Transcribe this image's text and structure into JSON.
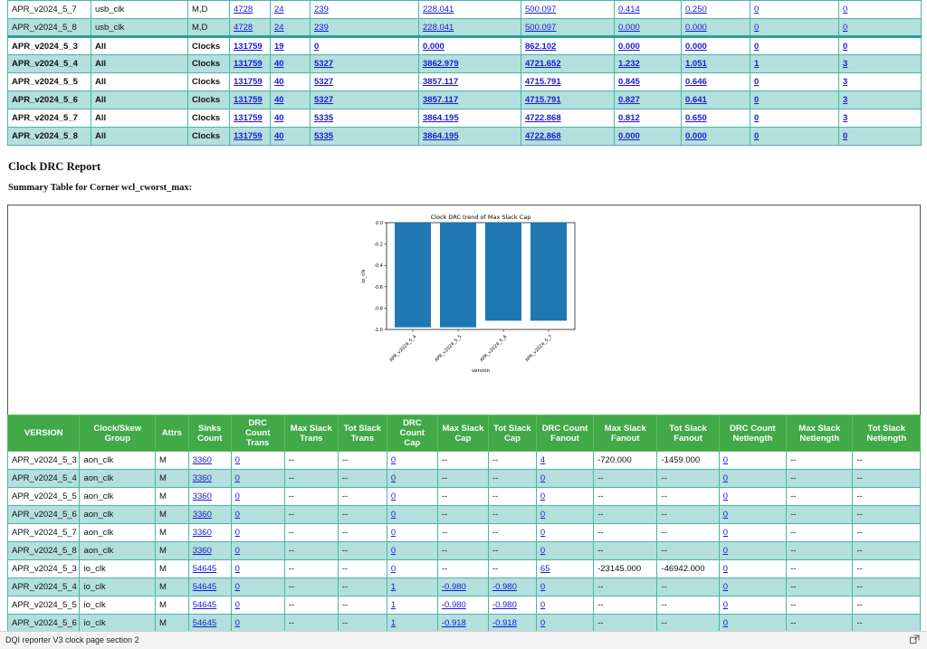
{
  "top_table": {
    "rows": [
      {
        "version": "APR_v2024_5_7",
        "group": "usb_clk",
        "attrs": "M,D",
        "c1": "4728",
        "c2": "24",
        "c3": "239",
        "c4": "228.041",
        "c5": "500.097",
        "c6": "0.414",
        "c7": "0.250",
        "c8": "0",
        "c9": "0"
      },
      {
        "version": "APR_v2024_5_8",
        "group": "usb_clk",
        "attrs": "M,D",
        "c1": "4728",
        "c2": "24",
        "c3": "239",
        "c4": "228.041",
        "c5": "500.097",
        "c6": "0.000",
        "c7": "0.000",
        "c8": "0",
        "c9": "0"
      },
      {
        "version": "APR_v2024_5_3",
        "group": "All",
        "attrs": "Clocks",
        "c1": "131759",
        "c2": "19",
        "c3": "0",
        "c4": "0.000",
        "c5": "862.102",
        "c6": "0.000",
        "c7": "0.000",
        "c8": "0",
        "c9": "0"
      },
      {
        "version": "APR_v2024_5_4",
        "group": "All",
        "attrs": "Clocks",
        "c1": "131759",
        "c2": "40",
        "c3": "5327",
        "c4": "3862.979",
        "c5": "4721.652",
        "c6": "1.232",
        "c7": "1.051",
        "c8": "1",
        "c9": "3"
      },
      {
        "version": "APR_v2024_5_5",
        "group": "All",
        "attrs": "Clocks",
        "c1": "131759",
        "c2": "40",
        "c3": "5327",
        "c4": "3857.117",
        "c5": "4715.791",
        "c6": "0.845",
        "c7": "0.646",
        "c8": "0",
        "c9": "3"
      },
      {
        "version": "APR_v2024_5_6",
        "group": "All",
        "attrs": "Clocks",
        "c1": "131759",
        "c2": "40",
        "c3": "5327",
        "c4": "3857.117",
        "c5": "4715.791",
        "c6": "0.827",
        "c7": "0.641",
        "c8": "0",
        "c9": "3"
      },
      {
        "version": "APR_v2024_5_7",
        "group": "All",
        "attrs": "Clocks",
        "c1": "131759",
        "c2": "40",
        "c3": "5335",
        "c4": "3864.195",
        "c5": "4722.868",
        "c6": "0.812",
        "c7": "0.650",
        "c8": "0",
        "c9": "3"
      },
      {
        "version": "APR_v2024_5_8",
        "group": "All",
        "attrs": "Clocks",
        "c1": "131759",
        "c2": "40",
        "c3": "5335",
        "c4": "3864.195",
        "c5": "4722.868",
        "c6": "0.000",
        "c7": "0.000",
        "c8": "0",
        "c9": "0"
      }
    ]
  },
  "section": {
    "title": "Clock DRC Report",
    "summary_title": "Summary Table for Corner wcl_cworst_max:"
  },
  "chart_data": {
    "type": "bar",
    "title": "Clock DRC trend of Max Slack Cap",
    "xlabel": "version",
    "ylabel": "io_clk",
    "categories": [
      "APR_v2024_5_4",
      "APR_v2024_5_5",
      "APR_v2024_5_6",
      "APR_v2024_5_7"
    ],
    "values": [
      -0.98,
      -0.98,
      -0.918,
      -0.918
    ],
    "ylim": [
      -1.0,
      0.0
    ],
    "yticks": [
      "0.0",
      "-0.2",
      "-0.4",
      "-0.6",
      "-0.8",
      "-1.0"
    ],
    "bar_color": "#1f77b4",
    "grid": false
  },
  "summary_table": {
    "headers": [
      "VERSION",
      "Clock/Skew Group",
      "Attrs",
      "Sinks Count",
      "DRC Count Trans",
      "Max Slack Trans",
      "Tot Slack Trans",
      "DRC Count Cap",
      "Max Slack Cap",
      "Tot Slack Cap",
      "DRC Count Fanout",
      "Max Slack Fanout",
      "Tot Slack Fanout",
      "DRC Count Netlength",
      "Max Slack Netlength",
      "Tot Slack Netlength"
    ],
    "rows": [
      {
        "version": "APR_v2024_5_3",
        "group": "aon_clk",
        "attrs": "M",
        "sinks": "3360",
        "drc_trans": "0",
        "max_trans": "--",
        "tot_trans": "--",
        "drc_cap": "0",
        "max_cap": "--",
        "tot_cap": "--",
        "drc_fanout": "4",
        "max_fanout": "-720.000",
        "tot_fanout": "-1459.000",
        "drc_net": "0",
        "max_net": "--",
        "tot_net": "--"
      },
      {
        "version": "APR_v2024_5_4",
        "group": "aon_clk",
        "attrs": "M",
        "sinks": "3360",
        "drc_trans": "0",
        "max_trans": "--",
        "tot_trans": "--",
        "drc_cap": "0",
        "max_cap": "--",
        "tot_cap": "--",
        "drc_fanout": "0",
        "max_fanout": "--",
        "tot_fanout": "--",
        "drc_net": "0",
        "max_net": "--",
        "tot_net": "--"
      },
      {
        "version": "APR_v2024_5_5",
        "group": "aon_clk",
        "attrs": "M",
        "sinks": "3360",
        "drc_trans": "0",
        "max_trans": "--",
        "tot_trans": "--",
        "drc_cap": "0",
        "max_cap": "--",
        "tot_cap": "--",
        "drc_fanout": "0",
        "max_fanout": "--",
        "tot_fanout": "--",
        "drc_net": "0",
        "max_net": "--",
        "tot_net": "--"
      },
      {
        "version": "APR_v2024_5_6",
        "group": "aon_clk",
        "attrs": "M",
        "sinks": "3360",
        "drc_trans": "0",
        "max_trans": "--",
        "tot_trans": "--",
        "drc_cap": "0",
        "max_cap": "--",
        "tot_cap": "--",
        "drc_fanout": "0",
        "max_fanout": "--",
        "tot_fanout": "--",
        "drc_net": "0",
        "max_net": "--",
        "tot_net": "--"
      },
      {
        "version": "APR_v2024_5_7",
        "group": "aon_clk",
        "attrs": "M",
        "sinks": "3360",
        "drc_trans": "0",
        "max_trans": "--",
        "tot_trans": "--",
        "drc_cap": "0",
        "max_cap": "--",
        "tot_cap": "--",
        "drc_fanout": "0",
        "max_fanout": "--",
        "tot_fanout": "--",
        "drc_net": "0",
        "max_net": "--",
        "tot_net": "--"
      },
      {
        "version": "APR_v2024_5_8",
        "group": "aon_clk",
        "attrs": "M",
        "sinks": "3360",
        "drc_trans": "0",
        "max_trans": "--",
        "tot_trans": "--",
        "drc_cap": "0",
        "max_cap": "--",
        "tot_cap": "--",
        "drc_fanout": "0",
        "max_fanout": "--",
        "tot_fanout": "--",
        "drc_net": "0",
        "max_net": "--",
        "tot_net": "--"
      },
      {
        "version": "APR_v2024_5_3",
        "group": "io_clk",
        "attrs": "M",
        "sinks": "54645",
        "drc_trans": "0",
        "max_trans": "--",
        "tot_trans": "--",
        "drc_cap": "0",
        "max_cap": "--",
        "tot_cap": "--",
        "drc_fanout": "65",
        "max_fanout": "-23145.000",
        "tot_fanout": "-46942.000",
        "drc_net": "0",
        "max_net": "--",
        "tot_net": "--"
      },
      {
        "version": "APR_v2024_5_4",
        "group": "io_clk",
        "attrs": "M",
        "sinks": "54645",
        "drc_trans": "0",
        "max_trans": "--",
        "tot_trans": "--",
        "drc_cap": "1",
        "max_cap": "-0.980",
        "tot_cap": "-0.980",
        "drc_fanout": "0",
        "max_fanout": "--",
        "tot_fanout": "--",
        "drc_net": "0",
        "max_net": "--",
        "tot_net": "--"
      },
      {
        "version": "APR_v2024_5_5",
        "group": "io_clk",
        "attrs": "M",
        "sinks": "54645",
        "drc_trans": "0",
        "max_trans": "--",
        "tot_trans": "--",
        "drc_cap": "1",
        "max_cap": "-0.980",
        "tot_cap": "-0.980",
        "drc_fanout": "0",
        "max_fanout": "--",
        "tot_fanout": "--",
        "drc_net": "0",
        "max_net": "--",
        "tot_net": "--"
      },
      {
        "version": "APR_v2024_5_6",
        "group": "io_clk",
        "attrs": "M",
        "sinks": "54645",
        "drc_trans": "0",
        "max_trans": "--",
        "tot_trans": "--",
        "drc_cap": "1",
        "max_cap": "-0.918",
        "tot_cap": "-0.918",
        "drc_fanout": "0",
        "max_fanout": "--",
        "tot_fanout": "--",
        "drc_net": "0",
        "max_net": "--",
        "tot_net": "--"
      }
    ]
  },
  "status_bar": {
    "text": "DQI reporter V3 clock page section 2",
    "icon": "popout-icon"
  }
}
